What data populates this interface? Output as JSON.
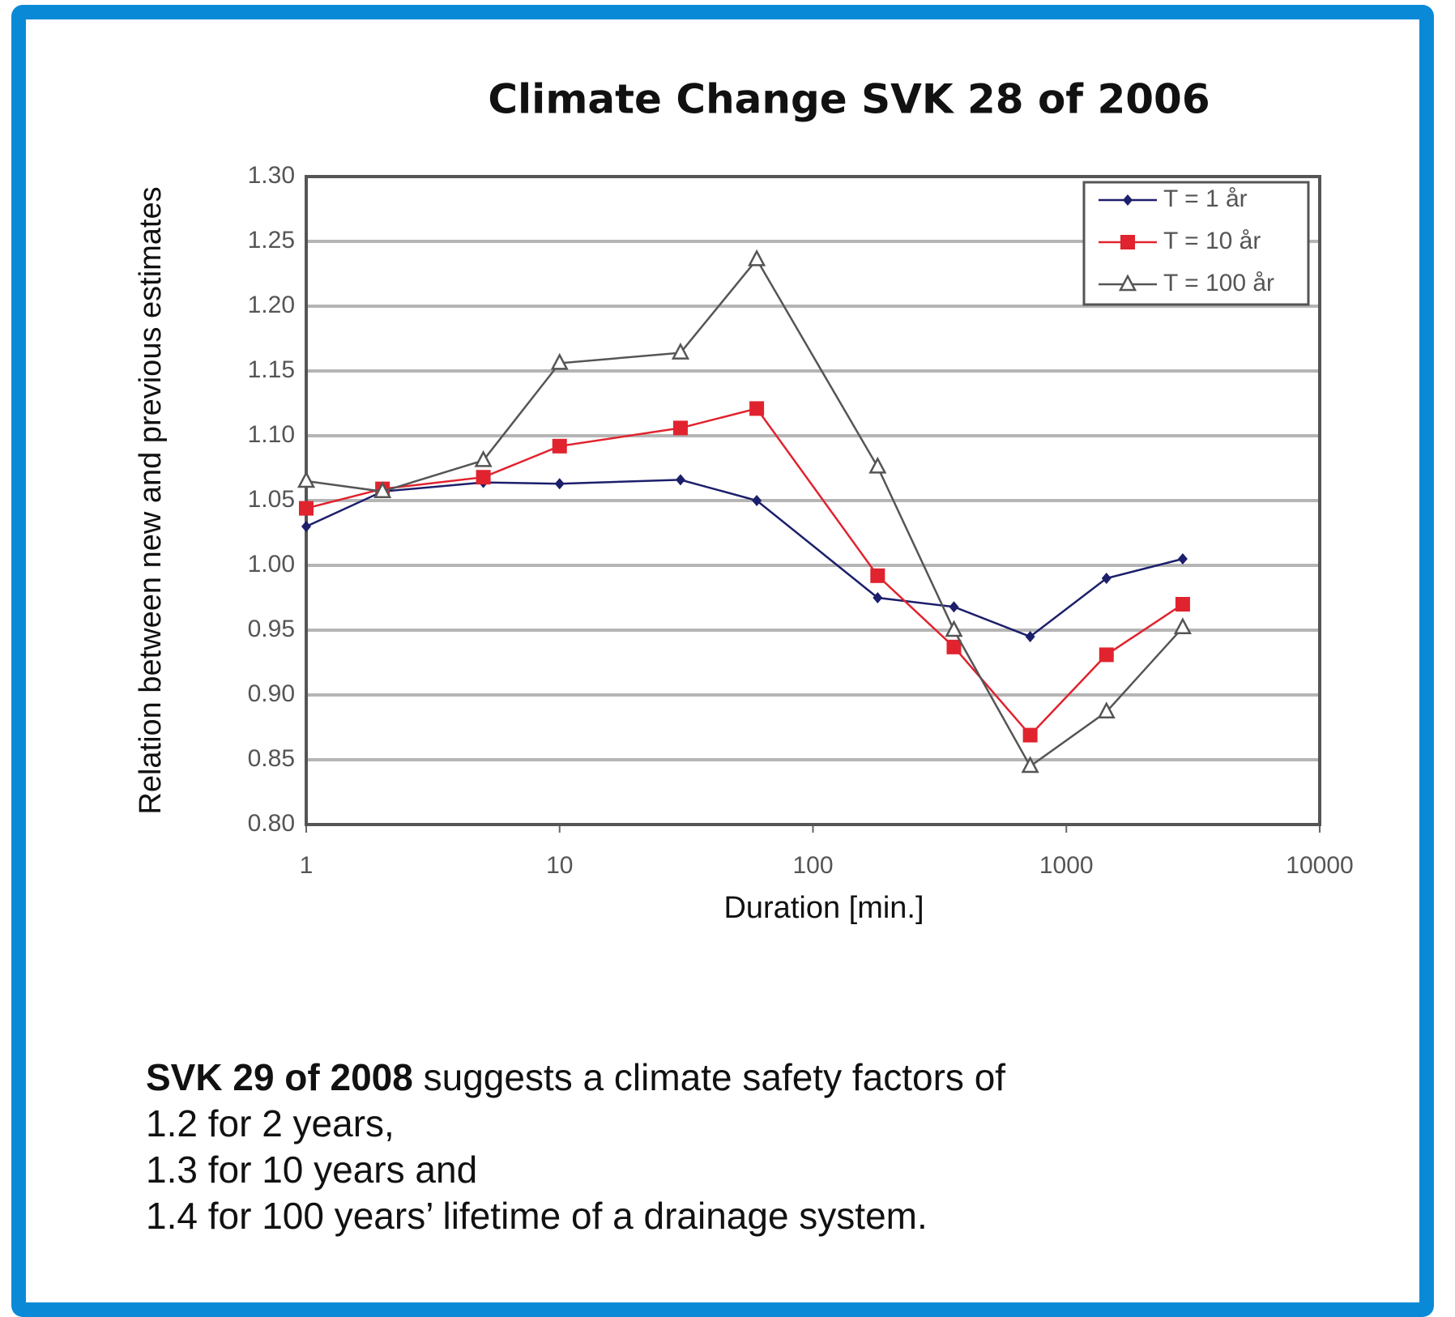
{
  "chart_data": {
    "type": "line",
    "title": "Climate Change SVK 28 of 2006",
    "xlabel": "Duration [min.]",
    "ylabel": "Relation between new and previous estimates",
    "x": [
      1,
      2,
      5,
      10,
      30,
      60,
      180,
      360,
      720,
      1440,
      2880
    ],
    "xscale": "log",
    "xlim": [
      1,
      10000
    ],
    "xticks": [
      1,
      10,
      100,
      1000,
      10000
    ],
    "ylim": [
      0.8,
      1.3
    ],
    "yticks": [
      {
        "value": 0.8,
        "label": "0.80"
      },
      {
        "value": 0.85,
        "label": "0.85"
      },
      {
        "value": 0.9,
        "label": "0.90"
      },
      {
        "value": 0.95,
        "label": "0.95"
      },
      {
        "value": 1.0,
        "label": "1.00"
      },
      {
        "value": 1.05,
        "label": "1.05"
      },
      {
        "value": 1.1,
        "label": "1.10"
      },
      {
        "value": 1.15,
        "label": "1.15"
      },
      {
        "value": 1.2,
        "label": "1.20"
      },
      {
        "value": 1.25,
        "label": "1.25"
      },
      {
        "value": 1.3,
        "label": "1.30"
      }
    ],
    "grid": true,
    "legend": "upper right",
    "series": [
      {
        "name": "T = 1 år",
        "color": "#1c1f6b",
        "marker": "diamond",
        "values": [
          1.03,
          1.057,
          1.064,
          1.063,
          1.066,
          1.05,
          0.975,
          0.968,
          0.945,
          0.99,
          1.005
        ]
      },
      {
        "name": "T = 10 år",
        "color": "#e0232e",
        "marker": "square",
        "values": [
          1.044,
          1.059,
          1.068,
          1.092,
          1.106,
          1.121,
          0.992,
          0.937,
          0.869,
          0.931,
          0.97
        ]
      },
      {
        "name": "T = 100 år",
        "color": "#555555",
        "marker": "triangle",
        "values": [
          1.065,
          1.057,
          1.081,
          1.156,
          1.164,
          1.236,
          1.076,
          0.95,
          0.845,
          0.887,
          0.952
        ]
      }
    ]
  },
  "text": {
    "bold": "SVK 29 of 2008",
    "rest": "suggests a climate safety factors of",
    "lines": [
      "1.2 for 2 years,",
      "1.3 for 10 years and",
      "1.4 for 100 years’ lifetime of a drainage system."
    ]
  }
}
